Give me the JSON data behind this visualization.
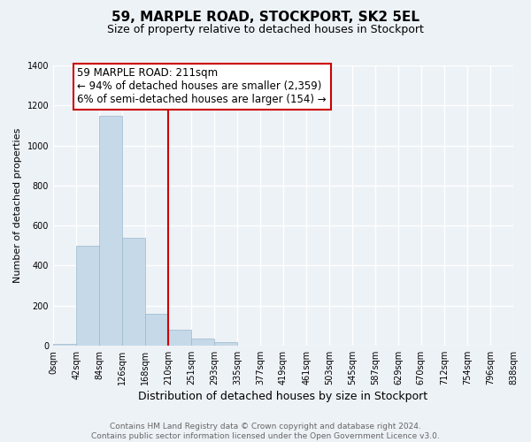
{
  "title1": "59, MARPLE ROAD, STOCKPORT, SK2 5EL",
  "title2": "Size of property relative to detached houses in Stockport",
  "xlabel": "Distribution of detached houses by size in Stockport",
  "ylabel": "Number of detached properties",
  "bar_edges": [
    0,
    42,
    84,
    126,
    168,
    210,
    251,
    293,
    335,
    377,
    419,
    461,
    503,
    545,
    587,
    629,
    670,
    712,
    754,
    796,
    838
  ],
  "bar_heights": [
    10,
    500,
    1150,
    540,
    160,
    80,
    35,
    18,
    0,
    0,
    0,
    0,
    0,
    0,
    0,
    0,
    0,
    0,
    0,
    0
  ],
  "bar_color": "#c6d9e8",
  "bar_edgecolor": "#9ab8cc",
  "property_line_x": 210,
  "property_line_color": "#cc0000",
  "tick_labels": [
    "0sqm",
    "42sqm",
    "84sqm",
    "126sqm",
    "168sqm",
    "210sqm",
    "251sqm",
    "293sqm",
    "335sqm",
    "377sqm",
    "419sqm",
    "461sqm",
    "503sqm",
    "545sqm",
    "587sqm",
    "629sqm",
    "670sqm",
    "712sqm",
    "754sqm",
    "796sqm",
    "838sqm"
  ],
  "ylim": [
    0,
    1400
  ],
  "yticks": [
    0,
    200,
    400,
    600,
    800,
    1000,
    1200,
    1400
  ],
  "annotation_title": "59 MARPLE ROAD: 211sqm",
  "annotation_line1": "← 94% of detached houses are smaller (2,359)",
  "annotation_line2": "6% of semi-detached houses are larger (154) →",
  "annotation_box_facecolor": "#ffffff",
  "annotation_box_edgecolor": "#cc0000",
  "footer_line1": "Contains HM Land Registry data © Crown copyright and database right 2024.",
  "footer_line2": "Contains public sector information licensed under the Open Government Licence v3.0.",
  "background_color": "#edf2f7",
  "grid_color": "#ffffff",
  "title1_fontsize": 11,
  "title2_fontsize": 9,
  "ylabel_fontsize": 8,
  "xlabel_fontsize": 9,
  "tick_fontsize": 7,
  "annotation_fontsize": 8.5,
  "footer_fontsize": 6.5,
  "footer_color": "#666666"
}
